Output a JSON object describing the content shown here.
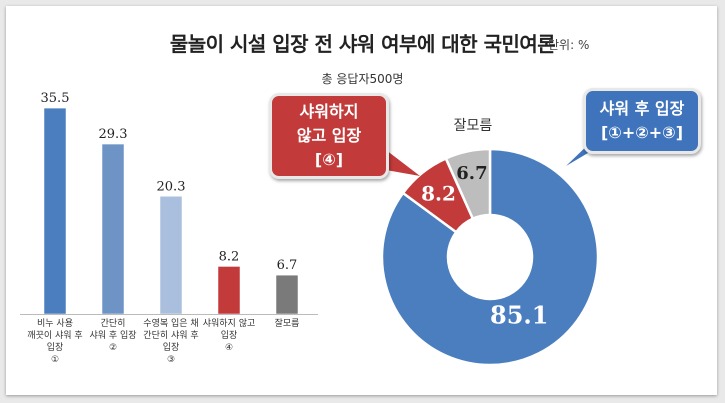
{
  "title": "물놀이 시설 입장 전 샤워 여부에 대한 국민여론",
  "unit": "단위: %",
  "subtitle": "총 응답자500명",
  "chart_data": [
    {
      "type": "bar",
      "categories": [
        "비누 사용 깨끗이 샤워 후 입장 ①",
        "간단히 샤워 후 입장 ②",
        "수영복 입은 채 간단히 샤워 후 입장 ③",
        "샤워하지 않고 입장 ④",
        "잘모름"
      ],
      "category_lines": [
        [
          "비누 사용",
          "깨끗이 샤워 후",
          "입장",
          "①"
        ],
        [
          "간단히",
          "샤워 후 입장",
          "②"
        ],
        [
          "수영복 입은 채",
          "간단히 샤워 후",
          "입장",
          "③"
        ],
        [
          "샤워하지 않고",
          "입장",
          "④"
        ],
        [
          "잘모름"
        ]
      ],
      "values": [
        35.5,
        29.3,
        20.3,
        8.2,
        6.7
      ],
      "value_labels": [
        "35.5",
        "29.3",
        "20.3",
        "8.2",
        "6.7"
      ],
      "colors": [
        "#4a7ebf",
        "#6e94c6",
        "#aabfdd",
        "#c23a3a",
        "#7a7a7a"
      ],
      "ylim": [
        0,
        40
      ],
      "grid": false
    },
    {
      "type": "pie",
      "variant": "donut",
      "categories": [
        "샤워 후 입장 (①+②+③)",
        "샤워하지 않고 입장 (④)",
        "잘모름"
      ],
      "values": [
        85.1,
        8.2,
        6.7
      ],
      "value_labels": [
        "85.1",
        "8.2",
        "6.7"
      ],
      "colors": [
        "#4a7ebf",
        "#c23a3a",
        "#bdbdbd"
      ],
      "start": "12 o'clock",
      "direction": "clockwise",
      "labels": {
        "shower": [
          "샤워 후 입장",
          "[①+②+③]"
        ],
        "no_shower": [
          "샤워하지",
          "않고 입장",
          "[④]"
        ],
        "unknown": "잘모름"
      }
    }
  ]
}
